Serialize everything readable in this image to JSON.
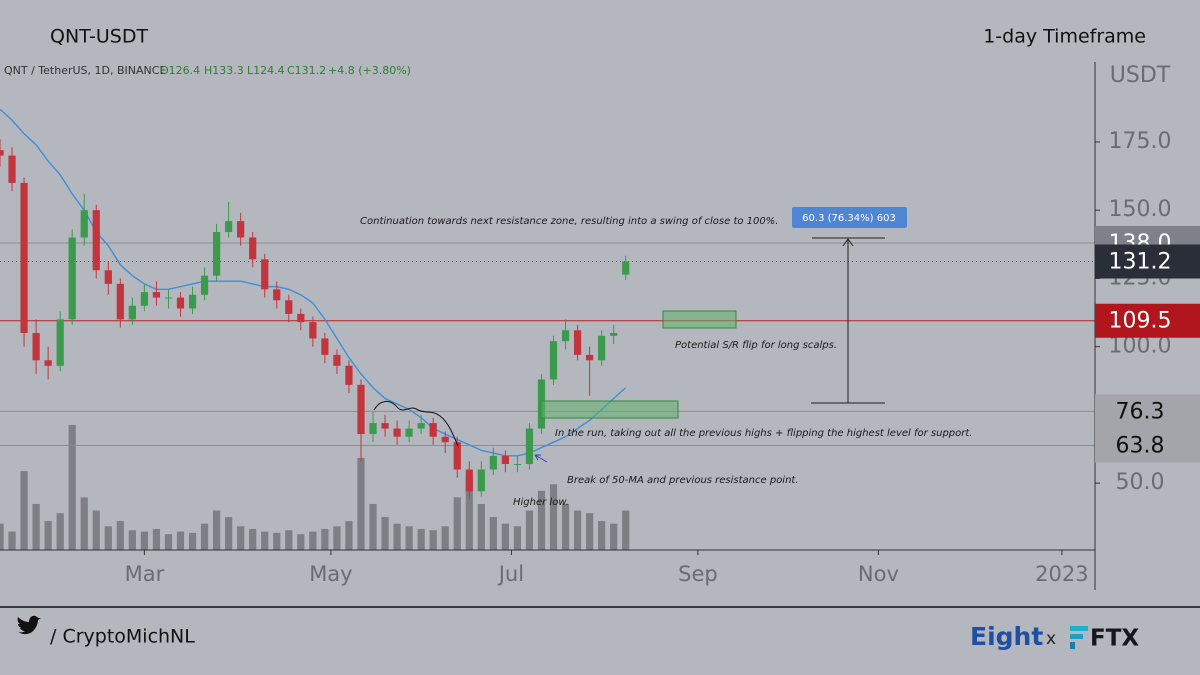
{
  "chart_data": {
    "type": "candlestick",
    "title": "QNT-USDT",
    "timeframe": "1-day Timeframe",
    "symbol_label": "QNT / TetherUS, 1D, BINANCE",
    "ohlc_labels": [
      "O126.4",
      "H133.3",
      "L124.4",
      "C131.2",
      "+4.8 (+3.80%)"
    ],
    "y_axis_label": "USDT",
    "x": [
      0,
      4,
      8,
      12,
      16,
      20,
      24,
      28,
      32,
      36,
      40,
      44,
      48,
      52,
      56,
      60,
      64,
      68,
      72,
      76,
      80,
      84,
      88,
      92,
      96,
      100,
      104,
      108,
      112,
      116,
      120,
      124,
      128,
      132,
      136,
      140,
      144,
      148,
      152,
      156,
      160,
      164,
      168,
      172,
      176,
      180,
      184,
      188,
      192,
      196,
      200,
      204,
      208
    ],
    "open": [
      172,
      170,
      160,
      105,
      95,
      93,
      110,
      140,
      150,
      128,
      123,
      110,
      115,
      120,
      118,
      118,
      114,
      119,
      126,
      142,
      146,
      140,
      132,
      121,
      117,
      112,
      109,
      103,
      97,
      93,
      86,
      68,
      72,
      70,
      67,
      70,
      72,
      67,
      65,
      55,
      47,
      55,
      60,
      57,
      57,
      70,
      88,
      102,
      106,
      97,
      95,
      104,
      126.4
    ],
    "high": [
      176,
      173,
      162,
      110,
      100,
      113,
      143,
      156,
      152,
      131,
      125,
      118,
      123,
      124,
      121,
      120,
      122,
      129,
      145,
      153,
      149,
      142,
      134,
      124,
      119,
      114,
      111,
      105,
      99,
      95,
      88,
      76,
      75,
      73,
      73,
      75,
      74,
      69,
      67,
      58,
      58,
      63,
      62,
      60,
      72,
      90,
      104,
      110,
      108,
      100,
      106,
      108,
      133.3
    ],
    "low": [
      166,
      157,
      100,
      90,
      88,
      91,
      108,
      137,
      125,
      119,
      107,
      108,
      113,
      115,
      114,
      111,
      112,
      117,
      124,
      140,
      137,
      129,
      118,
      114,
      109,
      106,
      100,
      94,
      90,
      83,
      58,
      65,
      67,
      64,
      65,
      68,
      64,
      61,
      52,
      44,
      45,
      53,
      54,
      54,
      55,
      68,
      86,
      99,
      95,
      82,
      93,
      101,
      124.4
    ],
    "close": [
      170,
      160,
      105,
      95,
      93,
      110,
      140,
      150,
      128,
      123,
      110,
      115,
      120,
      118,
      118,
      114,
      119,
      126,
      142,
      146,
      140,
      132,
      121,
      117,
      112,
      109,
      103,
      97,
      93,
      86,
      68,
      72,
      70,
      67,
      70,
      72,
      67,
      65,
      55,
      47,
      55,
      60,
      57,
      57,
      70,
      88,
      102,
      106,
      97,
      95,
      104,
      105,
      131.2
    ],
    "volume": [
      20,
      14,
      60,
      35,
      22,
      28,
      95,
      40,
      30,
      18,
      22,
      15,
      14,
      16,
      12,
      14,
      13,
      20,
      30,
      25,
      18,
      16,
      14,
      13,
      15,
      12,
      14,
      16,
      18,
      22,
      70,
      35,
      25,
      20,
      18,
      16,
      15,
      18,
      40,
      55,
      35,
      25,
      20,
      18,
      30,
      45,
      50,
      35,
      30,
      28,
      22,
      20,
      30
    ],
    "ma_name": "50-MA",
    "ma": [
      187,
      183,
      178,
      174,
      168,
      163,
      156,
      150,
      142,
      137,
      130,
      126,
      123,
      121,
      121,
      122,
      123,
      124,
      124,
      124,
      124,
      123,
      122,
      122,
      121,
      119,
      116,
      110,
      103,
      96,
      90,
      85,
      81,
      79,
      77,
      74,
      70,
      68,
      66,
      64,
      62,
      61,
      60,
      60,
      61,
      63,
      65,
      67,
      70,
      73,
      77,
      81,
      85
    ],
    "up_color": "#3c9a4c",
    "down_color": "#c2353d",
    "ma_color": "#3d8fd8",
    "xlim": [
      0,
      364
    ],
    "xticks": [
      {
        "value": 48,
        "label": "Mar"
      },
      {
        "value": 110,
        "label": "May"
      },
      {
        "value": 170,
        "label": "Jul"
      },
      {
        "value": 232,
        "label": "Sep"
      },
      {
        "value": 292,
        "label": "Nov"
      },
      {
        "value": 353,
        "label": "2023"
      }
    ],
    "ylim": [
      25.5,
      204.3
    ],
    "yticks": [
      {
        "value": 50,
        "label": "50.0"
      },
      {
        "value": 75,
        "label": "75.0"
      },
      {
        "value": 100,
        "label": "100.0"
      },
      {
        "value": 125,
        "label": "125.0"
      },
      {
        "value": 150,
        "label": "150.0"
      },
      {
        "value": 175,
        "label": "175.0"
      }
    ],
    "price_levels": [
      {
        "value": 138,
        "label": "138.0",
        "box_color": "#7f8189",
        "text_color": "#ffffff",
        "line_color": "#8a8c92",
        "line": "solid"
      },
      {
        "value": 131.2,
        "label": "131.2",
        "box_color": "#2a2e39",
        "text_color": "#ffffff",
        "line_color": "#555861",
        "line": "dotted"
      },
      {
        "value": 109.5,
        "label": "109.5",
        "box_color": "#b0161c",
        "text_color": "#ffffff",
        "line_color": "#b0262c",
        "line": "solid"
      },
      {
        "value": 76.3,
        "label": "76.3",
        "box_color": "#a3a5ab",
        "text_color": "#111111",
        "line_color": "#8a8c92",
        "line": "solid"
      },
      {
        "value": 63.8,
        "label": "63.8",
        "box_color": "#a3a5ab",
        "text_color": "#111111",
        "line_color": "#8a8c92",
        "line": "solid"
      }
    ],
    "annotations": {
      "continuation": "Continuation towards next resistance zone, resulting into a swing of close to 100%.",
      "measure": "60.3 (76.34%) 603",
      "sr_flip": "Potential S/R flip for long scalps.",
      "run": "In the run, taking out all the previous highs + flipping the highest level for support.",
      "break": "Break of 50-MA and previous resistance point.",
      "higher_low": "Higher low."
    }
  },
  "footer": {
    "handle": "/ CryptoMichNL",
    "brand": "Eight",
    "separator": "x",
    "partner": "FTX"
  }
}
